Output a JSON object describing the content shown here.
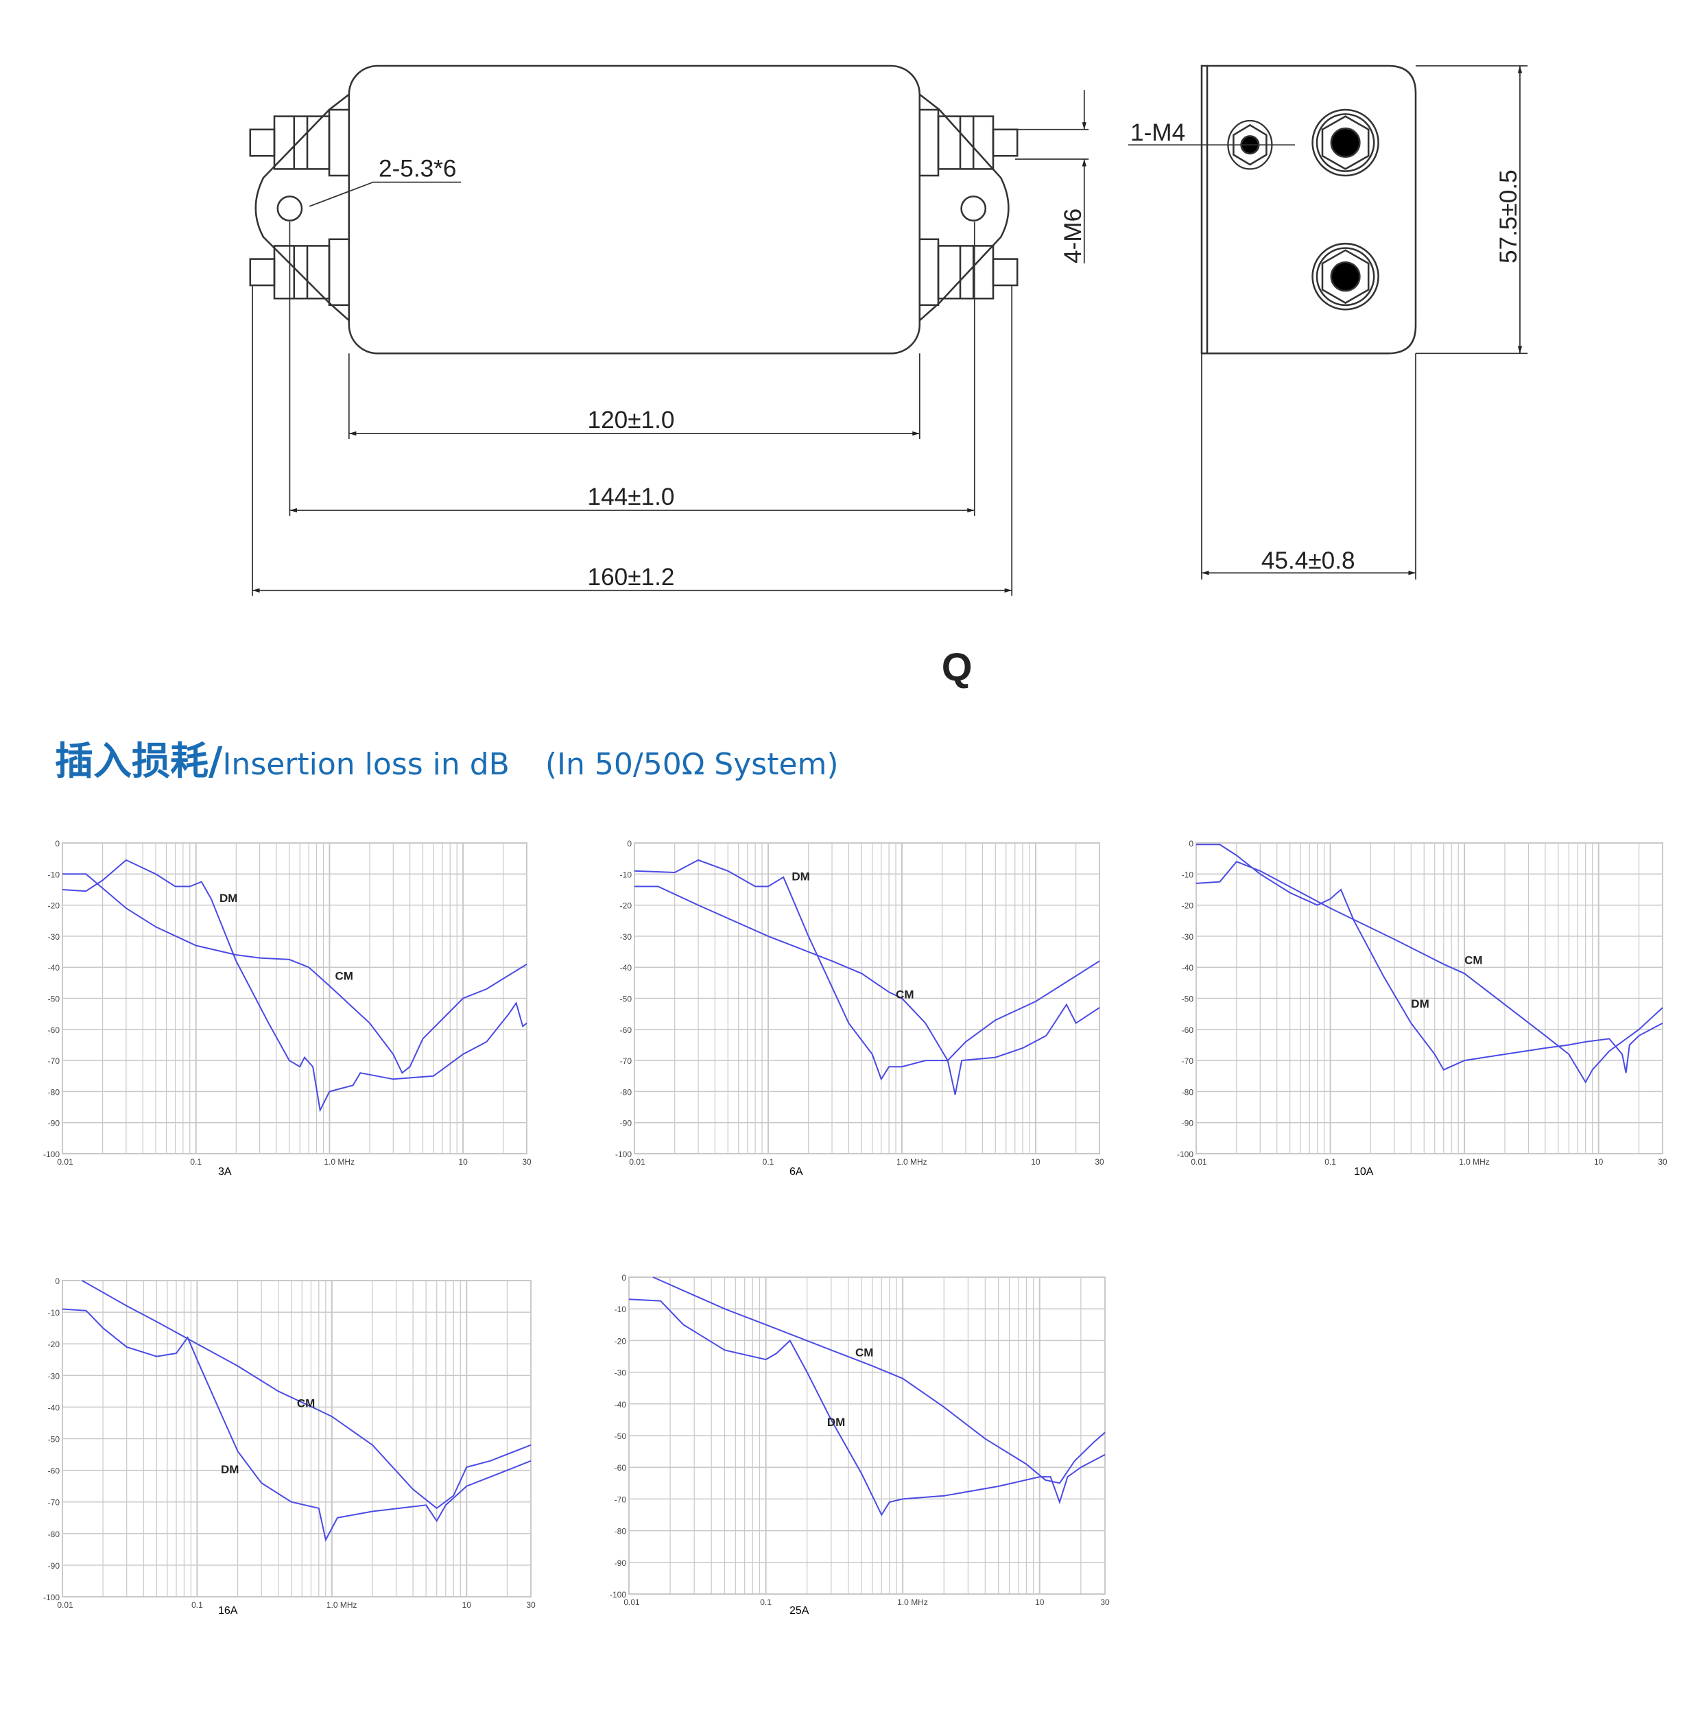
{
  "drawing": {
    "mount_hole_label": "2-5.3*6",
    "terminal_label": "4-M6",
    "ground_label": "1-M4",
    "dim_body": "120±1.0",
    "dim_holes": "144±1.0",
    "dim_overall": "160±1.2",
    "dim_height": "57.5±0.5",
    "dim_depth": "45.4±0.8",
    "model_letter": "Q"
  },
  "section": {
    "title_cn": "插入损耗/",
    "title_en": "Insertion loss in dB",
    "system": "(In 50/50Ω System)"
  },
  "colors": {
    "title": "#1a6db4",
    "curve": "#4a4ae6",
    "grid": "#c8c8c8"
  },
  "chart_data": [
    {
      "type": "line",
      "label": "3A",
      "xscale": "log",
      "xlim": [
        0.01,
        30
      ],
      "ylim": [
        -100,
        0
      ],
      "grid": true,
      "xticks": [
        "0.01",
        "0.1",
        "1.0  MHz",
        "10",
        "30"
      ],
      "yticks": [
        "0",
        "-10",
        "-20",
        "-30",
        "-40",
        "-50",
        "-60",
        "-70",
        "-80",
        "-90",
        "-100"
      ],
      "series": [
        {
          "name": "DM",
          "points": [
            [
              0.01,
              -15
            ],
            [
              0.015,
              -15.5
            ],
            [
              0.02,
              -12
            ],
            [
              0.03,
              -5.5
            ],
            [
              0.05,
              -10
            ],
            [
              0.07,
              -14
            ],
            [
              0.09,
              -14
            ],
            [
              0.11,
              -12.5
            ],
            [
              0.13,
              -18
            ],
            [
              0.2,
              -38
            ],
            [
              0.35,
              -58
            ],
            [
              0.5,
              -70
            ],
            [
              0.6,
              -72
            ],
            [
              0.65,
              -69
            ],
            [
              0.75,
              -72
            ],
            [
              0.85,
              -86
            ],
            [
              1.0,
              -80
            ],
            [
              1.5,
              -78
            ],
            [
              1.7,
              -74
            ],
            [
              3,
              -76
            ],
            [
              6,
              -75
            ],
            [
              10,
              -68
            ],
            [
              15,
              -64
            ],
            [
              22,
              -55
            ],
            [
              25,
              -51.5
            ],
            [
              28,
              -59
            ],
            [
              30,
              -58
            ]
          ],
          "label_at": [
            0.15,
            -19
          ]
        },
        {
          "name": "CM",
          "points": [
            [
              0.01,
              -10
            ],
            [
              0.015,
              -10
            ],
            [
              0.03,
              -21
            ],
            [
              0.05,
              -27
            ],
            [
              0.1,
              -33
            ],
            [
              0.2,
              -36
            ],
            [
              0.3,
              -37
            ],
            [
              0.5,
              -37.5
            ],
            [
              0.7,
              -40
            ],
            [
              1,
              -46
            ],
            [
              2,
              -58
            ],
            [
              3,
              -68
            ],
            [
              3.5,
              -74
            ],
            [
              4,
              -72
            ],
            [
              5,
              -63
            ],
            [
              10,
              -50
            ],
            [
              15,
              -47
            ],
            [
              30,
              -39
            ]
          ],
          "label_at": [
            1.1,
            -44
          ]
        }
      ]
    },
    {
      "type": "line",
      "label": "6A",
      "xscale": "log",
      "xlim": [
        0.01,
        30
      ],
      "ylim": [
        -100,
        0
      ],
      "grid": true,
      "xticks": [
        "0.01",
        "0.1",
        "1.0  MHz",
        "10",
        "30"
      ],
      "yticks": [
        "0",
        "-10",
        "-20",
        "-30",
        "-40",
        "-50",
        "-60",
        "-70",
        "-80",
        "-90",
        "-100"
      ],
      "series": [
        {
          "name": "DM",
          "points": [
            [
              0.01,
              -9
            ],
            [
              0.02,
              -9.5
            ],
            [
              0.03,
              -5.5
            ],
            [
              0.05,
              -9
            ],
            [
              0.08,
              -14
            ],
            [
              0.1,
              -14
            ],
            [
              0.13,
              -11
            ],
            [
              0.2,
              -30
            ],
            [
              0.4,
              -58
            ],
            [
              0.6,
              -68
            ],
            [
              0.7,
              -76
            ],
            [
              0.8,
              -72
            ],
            [
              1,
              -72
            ],
            [
              1.5,
              -70
            ],
            [
              2.2,
              -70
            ],
            [
              2.5,
              -81
            ],
            [
              2.8,
              -70
            ],
            [
              5,
              -69
            ],
            [
              8,
              -66
            ],
            [
              12,
              -62
            ],
            [
              17,
              -52
            ],
            [
              20,
              -58
            ],
            [
              30,
              -53
            ]
          ],
          "label_at": [
            0.15,
            -12
          ]
        },
        {
          "name": "CM",
          "points": [
            [
              0.01,
              -14
            ],
            [
              0.015,
              -14
            ],
            [
              0.03,
              -20
            ],
            [
              0.1,
              -30
            ],
            [
              0.3,
              -38
            ],
            [
              0.5,
              -42
            ],
            [
              0.8,
              -48
            ],
            [
              1.0,
              -50
            ],
            [
              1.5,
              -58
            ],
            [
              2.2,
              -70
            ],
            [
              3,
              -64
            ],
            [
              5,
              -57
            ],
            [
              10,
              -51
            ],
            [
              30,
              -38
            ]
          ],
          "label_at": [
            0.9,
            -50
          ]
        }
      ]
    },
    {
      "type": "line",
      "label": "10A",
      "xscale": "log",
      "xlim": [
        0.01,
        30
      ],
      "ylim": [
        -100,
        0
      ],
      "grid": true,
      "xticks": [
        "0.01",
        "0.1",
        "1.0  MHz",
        "10",
        "30"
      ],
      "yticks": [
        "0",
        "-10",
        "-20",
        "-30",
        "-40",
        "-50",
        "-60",
        "-70",
        "-80",
        "-90",
        "-100"
      ],
      "series": [
        {
          "name": "DM",
          "points": [
            [
              0.01,
              -0.5
            ],
            [
              0.015,
              -0.5
            ],
            [
              0.02,
              -4
            ],
            [
              0.03,
              -10
            ],
            [
              0.05,
              -16
            ],
            [
              0.08,
              -20
            ],
            [
              0.1,
              -18
            ],
            [
              0.12,
              -15
            ],
            [
              0.15,
              -25
            ],
            [
              0.25,
              -43
            ],
            [
              0.4,
              -58
            ],
            [
              0.6,
              -68
            ],
            [
              0.7,
              -73
            ],
            [
              1,
              -70
            ],
            [
              2,
              -68
            ],
            [
              4,
              -66
            ],
            [
              6,
              -65
            ],
            [
              8,
              -64
            ],
            [
              12,
              -63
            ],
            [
              15,
              -68
            ],
            [
              16,
              -74
            ],
            [
              17,
              -65
            ],
            [
              20,
              -62
            ],
            [
              30,
              -58
            ]
          ],
          "label_at": [
            0.4,
            -53
          ]
        },
        {
          "name": "CM",
          "points": [
            [
              0.01,
              -13
            ],
            [
              0.015,
              -12.5
            ],
            [
              0.02,
              -6
            ],
            [
              0.03,
              -9
            ],
            [
              0.1,
              -21
            ],
            [
              0.3,
              -31
            ],
            [
              0.7,
              -39
            ],
            [
              1,
              -42
            ],
            [
              2,
              -52
            ],
            [
              4,
              -62
            ],
            [
              6,
              -68
            ],
            [
              8,
              -77
            ],
            [
              9,
              -73
            ],
            [
              12,
              -67
            ],
            [
              20,
              -60
            ],
            [
              30,
              -53
            ]
          ],
          "label_at": [
            1.0,
            -39
          ]
        }
      ]
    },
    {
      "type": "line",
      "label": "16A",
      "xscale": "log",
      "xlim": [
        0.01,
        30
      ],
      "ylim": [
        -100,
        0
      ],
      "grid": true,
      "xticks": [
        "0.01",
        "0.1",
        "1.0  MHz",
        "10",
        "30"
      ],
      "yticks": [
        "0",
        "-10",
        "-20",
        "-30",
        "-40",
        "-50",
        "-60",
        "-70",
        "-80",
        "-90",
        "-100"
      ],
      "series": [
        {
          "name": "DM",
          "points": [
            [
              0.01,
              -9
            ],
            [
              0.015,
              -9.5
            ],
            [
              0.02,
              -15
            ],
            [
              0.03,
              -21
            ],
            [
              0.05,
              -24
            ],
            [
              0.07,
              -23
            ],
            [
              0.085,
              -18
            ],
            [
              0.1,
              -25
            ],
            [
              0.15,
              -42
            ],
            [
              0.2,
              -54
            ],
            [
              0.3,
              -64
            ],
            [
              0.5,
              -70
            ],
            [
              0.8,
              -72
            ],
            [
              0.9,
              -82
            ],
            [
              1.1,
              -75
            ],
            [
              2,
              -73
            ],
            [
              5,
              -71
            ],
            [
              6,
              -76
            ],
            [
              7,
              -71
            ],
            [
              10,
              -65
            ],
            [
              20,
              -60
            ],
            [
              30,
              -57
            ]
          ],
          "label_at": [
            0.15,
            -61
          ]
        },
        {
          "name": "CM",
          "points": [
            [
              0.014,
              0
            ],
            [
              0.03,
              -8
            ],
            [
              0.05,
              -13
            ],
            [
              0.1,
              -20
            ],
            [
              0.2,
              -27
            ],
            [
              0.4,
              -35
            ],
            [
              0.8,
              -41
            ],
            [
              1,
              -43
            ],
            [
              2,
              -52
            ],
            [
              4,
              -66
            ],
            [
              6,
              -72
            ],
            [
              8,
              -68
            ],
            [
              10,
              -59
            ],
            [
              15,
              -57
            ],
            [
              30,
              -52
            ]
          ],
          "label_at": [
            0.55,
            -40
          ]
        }
      ]
    },
    {
      "type": "line",
      "label": "25A",
      "xscale": "log",
      "xlim": [
        0.01,
        30
      ],
      "ylim": [
        -100,
        0
      ],
      "grid": true,
      "xticks": [
        "0.01",
        "0.1",
        "1.0  MHz",
        "10",
        "30"
      ],
      "yticks": [
        "0",
        "-10",
        "-20",
        "-30",
        "-40",
        "-50",
        "-60",
        "-70",
        "-80",
        "-90",
        "-100"
      ],
      "series": [
        {
          "name": "DM",
          "points": [
            [
              0.01,
              -7
            ],
            [
              0.017,
              -7.5
            ],
            [
              0.025,
              -15
            ],
            [
              0.05,
              -23
            ],
            [
              0.1,
              -26
            ],
            [
              0.12,
              -24
            ],
            [
              0.15,
              -20
            ],
            [
              0.2,
              -30
            ],
            [
              0.3,
              -45
            ],
            [
              0.5,
              -62
            ],
            [
              0.7,
              -75
            ],
            [
              0.8,
              -71
            ],
            [
              1,
              -70
            ],
            [
              2,
              -69
            ],
            [
              5,
              -66
            ],
            [
              10,
              -63
            ],
            [
              12,
              -63
            ],
            [
              14,
              -71
            ],
            [
              16,
              -63
            ],
            [
              20,
              -60
            ],
            [
              30,
              -56
            ]
          ],
          "label_at": [
            0.28,
            -47
          ]
        },
        {
          "name": "CM",
          "points": [
            [
              0.015,
              0
            ],
            [
              0.05,
              -10
            ],
            [
              0.1,
              -15
            ],
            [
              0.3,
              -23
            ],
            [
              0.6,
              -28
            ],
            [
              1,
              -32
            ],
            [
              2,
              -41
            ],
            [
              4,
              -51
            ],
            [
              8,
              -59
            ],
            [
              11,
              -64
            ],
            [
              14,
              -65
            ],
            [
              18,
              -58
            ],
            [
              25,
              -52
            ],
            [
              30,
              -49
            ]
          ],
          "label_at": [
            0.45,
            -25
          ]
        }
      ]
    }
  ]
}
